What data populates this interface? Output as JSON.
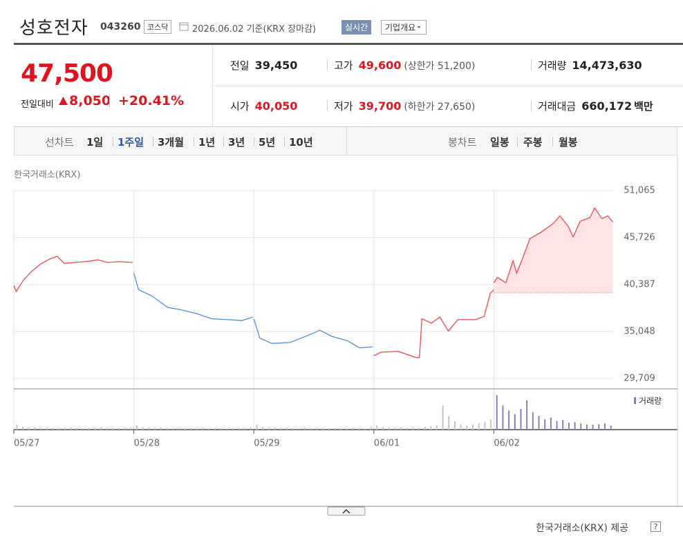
{
  "header": {
    "title": "성호전자",
    "code": "043260",
    "market": "코스닥",
    "date": "2026.06.02",
    "basis": "기준(KRX 장마감)",
    "realtime_button": "실시간",
    "company_button": "기업개요"
  },
  "summary": {
    "price": "47,500",
    "change_label": "전일대비",
    "change": "8,050",
    "change_pct": "+20.41%",
    "stats": [
      {
        "label": "전일",
        "value": "39,450"
      },
      {
        "label": "고가",
        "value": "49,600",
        "note": "(상한가 51,200)"
      },
      {
        "label": "거래량",
        "value": "14,473,630"
      },
      {
        "label": "시가",
        "value": "40,050"
      },
      {
        "label": "저가",
        "value": "39,700",
        "note": "(하한가 27,650)"
      },
      {
        "label": "거래대금",
        "value": "660,172",
        "unit": "백만"
      }
    ]
  },
  "tabs": {
    "line_label": "선차트",
    "line_periods": [
      "1일",
      "1주일",
      "3개월",
      "1년",
      "3년",
      "5년",
      "10년"
    ],
    "selected_period": 1,
    "candle_label": "봉차트",
    "candle_periods": [
      "일봉",
      "주봉",
      "월봉"
    ]
  },
  "chart_data": {
    "type": "line",
    "source": "한국거래소(KRX)",
    "xlim": [
      0,
      5
    ],
    "xticks": [
      {
        "value": 0,
        "label": "05/27"
      },
      {
        "value": 1,
        "label": "05/28"
      },
      {
        "value": 2,
        "label": "05/29"
      },
      {
        "value": 3,
        "label": "06/01"
      },
      {
        "value": 4,
        "label": "06/02"
      }
    ],
    "ylim": [
      29709,
      51065
    ],
    "yticks": [
      {
        "value": 51065,
        "label": "51,065"
      },
      {
        "value": 45726,
        "label": "45,726"
      },
      {
        "value": 40387,
        "label": "40,387"
      },
      {
        "value": 35048,
        "label": "35,048"
      },
      {
        "value": 29709,
        "label": "29,709"
      }
    ],
    "grid": true,
    "reference_line": 39450,
    "series": [
      {
        "color": "#f04848",
        "x": [
          0,
          0.02,
          0.08,
          0.15,
          0.22,
          0.3,
          0.36,
          0.42,
          0.5,
          0.6,
          0.7,
          0.78,
          0.88,
          0.99
        ],
        "values": [
          40300,
          39600,
          40900,
          41900,
          42700,
          43300,
          43600,
          42800,
          42900,
          43000,
          43200,
          42900,
          43000,
          42900
        ]
      },
      {
        "color": "#4a8fe0",
        "x": [
          1,
          1.04,
          1.15,
          1.28,
          1.4,
          1.52,
          1.65,
          1.78,
          1.9,
          1.99
        ],
        "values": [
          41700,
          39800,
          39100,
          37800,
          37500,
          37100,
          36500,
          36400,
          36300,
          36700
        ]
      },
      {
        "color": "#4a8fe0",
        "x": [
          2,
          2.05,
          2.15,
          2.3,
          2.45,
          2.55,
          2.65,
          2.78,
          2.88,
          2.99
        ],
        "values": [
          36500,
          34300,
          33700,
          33800,
          34600,
          35200,
          34500,
          34000,
          33200,
          33300
        ]
      },
      {
        "color": "#f04848",
        "x": [
          3,
          3.06,
          3.2,
          3.35,
          3.38,
          3.4,
          3.48,
          3.55,
          3.62,
          3.7,
          3.85,
          3.92,
          3.97,
          4
        ],
        "values": [
          32300,
          32700,
          32800,
          32100,
          32100,
          36500,
          36000,
          36700,
          35100,
          36400,
          36400,
          36800,
          39400,
          39800
        ]
      },
      {
        "color": "#f04848",
        "fill": "#fde3e3",
        "x": [
          4,
          4.03,
          4.1,
          4.16,
          4.19,
          4.24,
          4.3,
          4.4,
          4.5,
          4.55,
          4.62,
          4.66,
          4.72,
          4.8,
          4.84,
          4.9,
          4.95,
          4.99
        ],
        "values": [
          40600,
          41200,
          40600,
          43100,
          41700,
          43400,
          45600,
          46400,
          47400,
          48200,
          47000,
          45800,
          47600,
          48000,
          49100,
          47900,
          48200,
          47500
        ]
      }
    ],
    "volume": {
      "name": "거래량",
      "series": [
        {
          "color": "#c4c4c4",
          "values": [
            14,
            8,
            6,
            7,
            5,
            6,
            5,
            4,
            5,
            6,
            5,
            4,
            5,
            4,
            6,
            5,
            4,
            5,
            6,
            7,
            12,
            7,
            6,
            5,
            6,
            5,
            4,
            5,
            4,
            5,
            4,
            5,
            4,
            4,
            5,
            4,
            4,
            5,
            5,
            6,
            14,
            8,
            6,
            6,
            5,
            5,
            5,
            4,
            5,
            4,
            5,
            4,
            4,
            5,
            4,
            4,
            5,
            4,
            4,
            6,
            12,
            8,
            6,
            5,
            6,
            5,
            6,
            5,
            8,
            10,
            12,
            70,
            40,
            25,
            15,
            12,
            14,
            18,
            22,
            30
          ]
        },
        {
          "color": "#8e7cc3",
          "values": [
            100,
            70,
            55,
            45,
            60,
            85,
            50,
            40,
            30,
            35,
            25,
            28,
            20,
            22,
            18,
            15,
            14,
            16,
            18,
            12
          ]
        }
      ]
    }
  },
  "footer": {
    "credit": "한국거래소(KRX) 제공",
    "help": "?"
  }
}
